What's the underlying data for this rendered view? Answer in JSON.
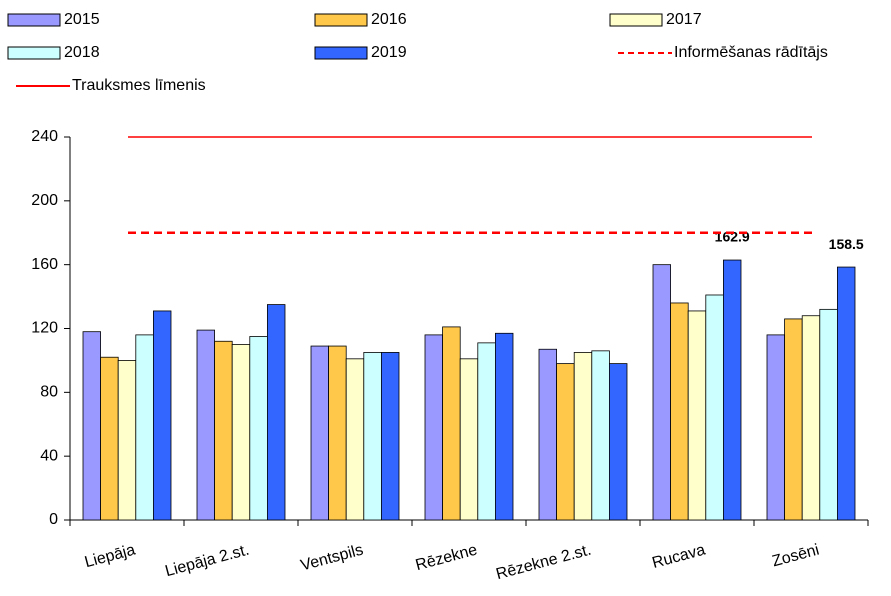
{
  "chart_data": {
    "type": "bar",
    "categories": [
      "Liepāja",
      "Liepāja 2.st.",
      "Ventspils",
      "Rēzekne",
      "Rēzekne 2.st.",
      "Rucava",
      "Zosēni"
    ],
    "series": [
      {
        "name": "2015",
        "color": "#9999ff",
        "values": [
          118,
          119,
          109,
          116,
          107,
          160,
          116
        ]
      },
      {
        "name": "2016",
        "color": "#ffc84a",
        "values": [
          102,
          112,
          109,
          121,
          98,
          136,
          126
        ]
      },
      {
        "name": "2017",
        "color": "#ffffcc",
        "values": [
          100,
          110,
          101,
          101,
          105,
          131,
          128
        ]
      },
      {
        "name": "2018",
        "color": "#ccffff",
        "values": [
          116,
          115,
          105,
          111,
          106,
          141,
          132
        ]
      },
      {
        "name": "2019",
        "color": "#3366ff",
        "values": [
          131,
          135,
          105,
          117,
          98,
          162.9,
          158.5
        ],
        "value_labels": [
          null,
          null,
          null,
          null,
          null,
          "162.9",
          "158.5"
        ]
      }
    ],
    "reference_lines": [
      {
        "name": "Informēšanas rādītājs",
        "value": 180,
        "color": "#ff0000",
        "dashed": true
      },
      {
        "name": "Trauksmes līmenis",
        "value": 240,
        "color": "#ff0000",
        "dashed": false
      }
    ],
    "ylim": [
      0,
      240
    ],
    "yticks": [
      0,
      40,
      80,
      120,
      160,
      200,
      240
    ]
  }
}
